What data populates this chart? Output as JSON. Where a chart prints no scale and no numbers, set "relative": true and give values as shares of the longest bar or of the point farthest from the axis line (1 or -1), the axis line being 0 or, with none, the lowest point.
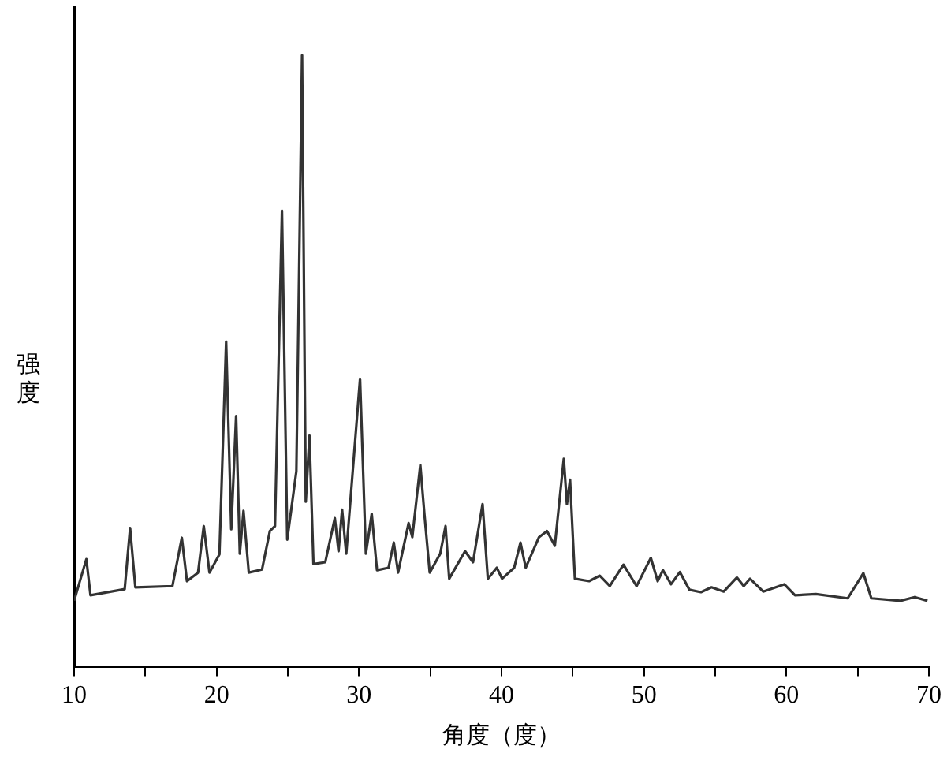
{
  "chart_data": {
    "type": "line",
    "relative": true,
    "xlabel": "角度（度）",
    "ylabel": "强度",
    "xlim": [
      10,
      70
    ],
    "xticks": [
      10,
      {
        "value": 15,
        "label": null
      },
      20,
      {
        "value": 25,
        "label": null
      },
      30,
      {
        "value": 35,
        "label": null
      },
      40,
      {
        "value": 45,
        "label": null
      },
      50,
      {
        "value": 55,
        "label": null
      },
      60,
      {
        "value": 65,
        "label": null
      },
      70
    ],
    "grid": false,
    "legend": false,
    "marker": "none",
    "line_style": "solid",
    "series": [
      {
        "color": "#333333",
        "x": [
          10.0,
          10.86,
          11.15,
          13.55,
          13.93,
          14.3,
          16.9,
          17.56,
          17.92,
          18.7,
          19.1,
          19.5,
          20.2,
          20.67,
          21.03,
          21.37,
          21.63,
          21.89,
          22.26,
          23.19,
          23.74,
          24.1,
          24.59,
          24.96,
          25.6,
          26.0,
          26.26,
          26.52,
          26.8,
          27.63,
          28.3,
          28.56,
          28.81,
          29.1,
          30.07,
          30.48,
          30.89,
          31.26,
          32.07,
          32.44,
          32.74,
          33.48,
          33.74,
          34.3,
          34.59,
          34.96,
          35.7,
          36.07,
          36.33,
          37.44,
          38.0,
          38.67,
          39.04,
          39.67,
          40.04,
          40.89,
          41.33,
          41.7,
          42.63,
          43.19,
          43.74,
          44.37,
          44.59,
          44.81,
          45.15,
          46.15,
          46.9,
          47.6,
          48.56,
          49.48,
          50.48,
          50.96,
          51.33,
          51.9,
          52.52,
          53.19,
          54.0,
          54.74,
          55.6,
          56.52,
          57.0,
          57.44,
          58.37,
          59.85,
          60.6,
          62.07,
          64.3,
          65.4,
          65.96,
          68.0,
          69.0,
          69.9
        ],
        "values": [
          0.108,
          0.176,
          0.117,
          0.127,
          0.227,
          0.13,
          0.132,
          0.211,
          0.14,
          0.154,
          0.23,
          0.154,
          0.184,
          0.532,
          0.225,
          0.41,
          0.185,
          0.255,
          0.154,
          0.159,
          0.222,
          0.23,
          0.746,
          0.208,
          0.32,
          1.0,
          0.27,
          0.378,
          0.168,
          0.171,
          0.243,
          0.189,
          0.257,
          0.185,
          0.471,
          0.185,
          0.25,
          0.158,
          0.162,
          0.203,
          0.154,
          0.235,
          0.212,
          0.33,
          0.249,
          0.154,
          0.185,
          0.23,
          0.144,
          0.189,
          0.171,
          0.266,
          0.144,
          0.162,
          0.144,
          0.162,
          0.203,
          0.162,
          0.212,
          0.222,
          0.198,
          0.34,
          0.266,
          0.306,
          0.144,
          0.14,
          0.149,
          0.132,
          0.167,
          0.132,
          0.178,
          0.14,
          0.158,
          0.135,
          0.155,
          0.126,
          0.122,
          0.13,
          0.123,
          0.146,
          0.132,
          0.144,
          0.123,
          0.135,
          0.117,
          0.119,
          0.112,
          0.153,
          0.112,
          0.108,
          0.114,
          0.108
        ]
      }
    ]
  }
}
